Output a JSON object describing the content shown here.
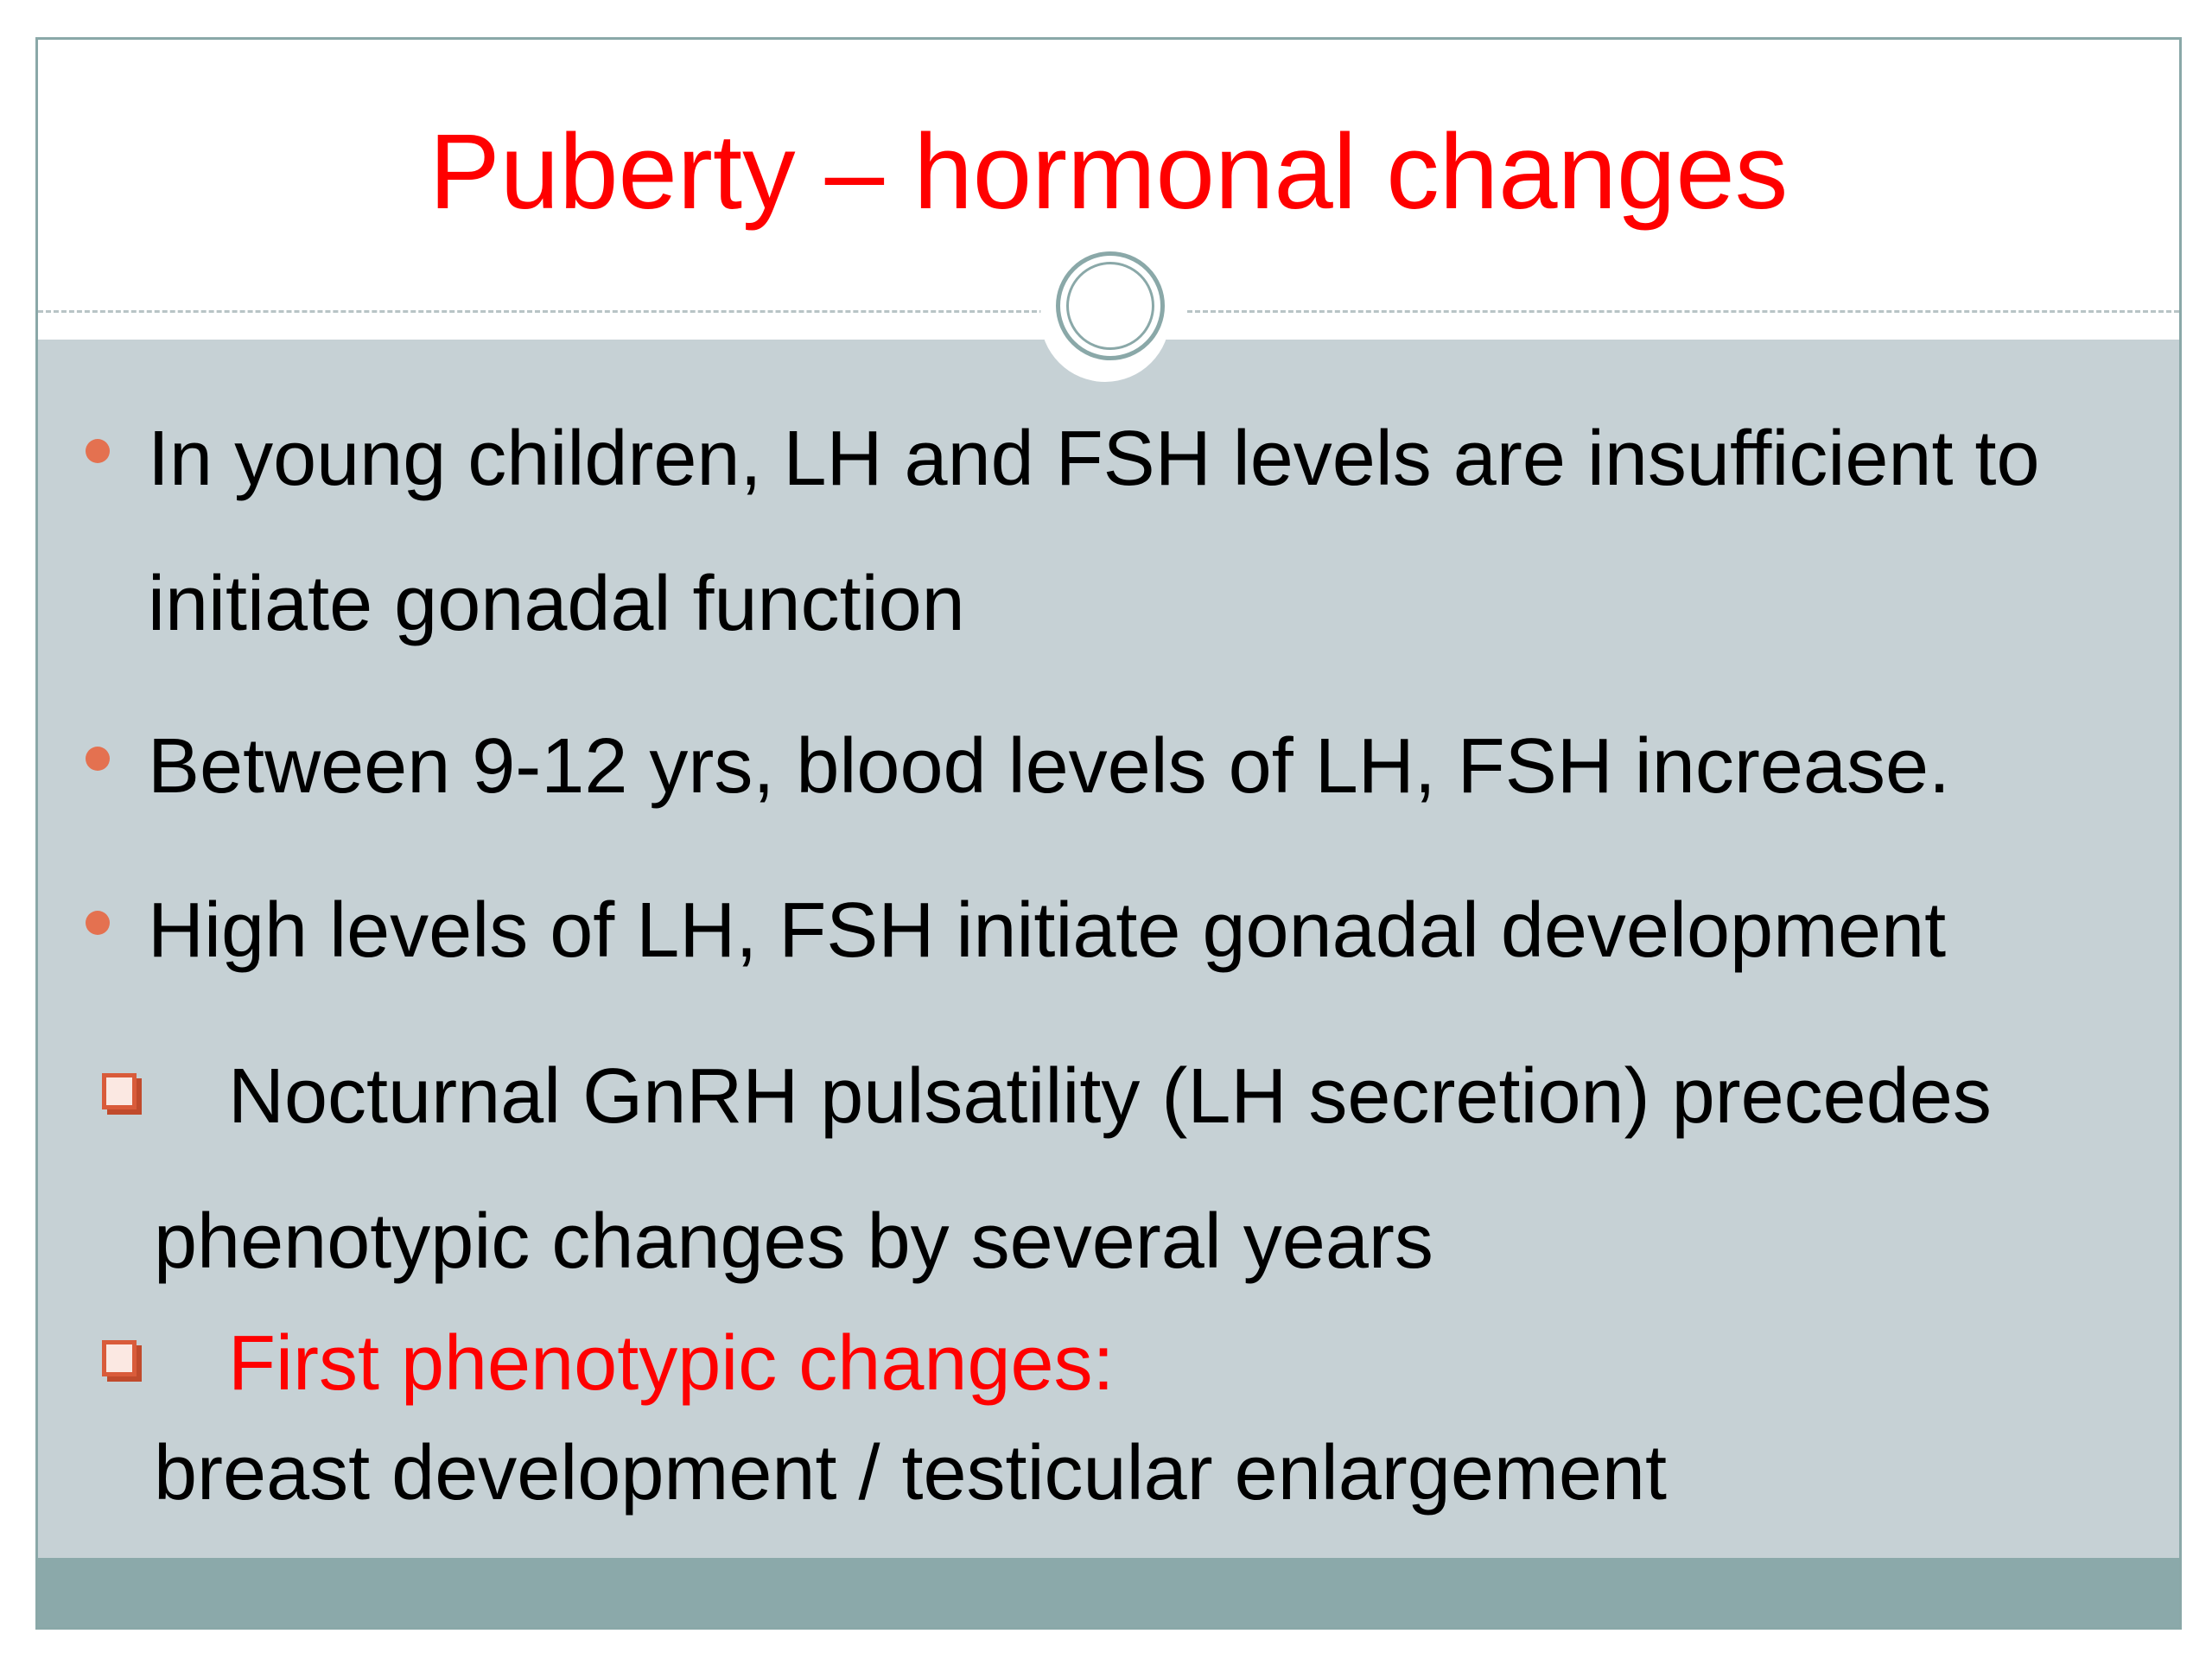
{
  "slide": {
    "title": "Puberty – hormonal changes",
    "title_color": "#ff0000",
    "accent_color": "#e47150",
    "highlight_color": "#ff0000",
    "bullets": [
      {
        "line1": "In young children, LH and FSH levels are insufficient to",
        "line2": "initiate gonadal function"
      },
      {
        "line1": "Between 9-12 yrs, blood levels of LH, FSH increase."
      },
      {
        "line1": "High levels of LH, FSH initiate gonadal development"
      }
    ],
    "sub_items": [
      {
        "line1": "Nocturnal GnRH pulsatility (LH secretion) precedes",
        "line2": "phenotypic changes by several years",
        "icon": "checkbox-bullet-icon"
      },
      {
        "line1": "First phenotypic changes:",
        "line2": "breast development / testicular enlargement",
        "icon": "checkbox-bullet-icon"
      }
    ]
  }
}
